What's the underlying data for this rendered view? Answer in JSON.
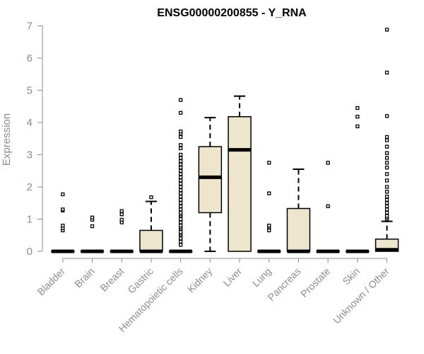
{
  "chart_data": {
    "type": "box",
    "title": "ENSG00000200855 - Y_RNA",
    "xlabel": "",
    "ylabel": "Expression",
    "ylim": [
      0,
      7
    ],
    "yticks": [
      0,
      1,
      2,
      3,
      4,
      5,
      6,
      7
    ],
    "grid": false,
    "colors": {
      "box_fill": "#ede6cc",
      "stroke": "#000000",
      "axis": "#8c8c8c"
    },
    "categories": [
      "Bladder",
      "Brain",
      "Breast",
      "Gastric",
      "Hematopoietic cells",
      "Kidney",
      "Liver",
      "Lung",
      "Pancreas",
      "Prostate",
      "Skin",
      "Unknown / Other"
    ],
    "boxes": [
      {
        "category": "Bladder",
        "whisker_low": 0,
        "q1": 0,
        "median": 0,
        "q3": 0,
        "whisker_high": 0,
        "outliers": [
          0.65,
          0.72,
          0.8,
          1.27,
          1.3,
          1.77
        ]
      },
      {
        "category": "Brain",
        "whisker_low": 0,
        "q1": 0,
        "median": 0,
        "q3": 0,
        "whisker_high": 0,
        "outliers": [
          0.78,
          0.98,
          1.05
        ]
      },
      {
        "category": "Breast",
        "whisker_low": 0,
        "q1": 0,
        "median": 0,
        "q3": 0,
        "whisker_high": 0,
        "outliers": [
          0.9,
          0.98,
          1.15,
          1.25
        ]
      },
      {
        "category": "Gastric",
        "whisker_low": 0,
        "q1": 0,
        "median": 0,
        "q3": 0.65,
        "whisker_high": 1.55,
        "outliers": [
          1.68
        ]
      },
      {
        "category": "Hematopoietic cells",
        "whisker_low": 0,
        "q1": 0,
        "median": 0,
        "q3": 0,
        "whisker_high": 0,
        "outliers": [
          0.2,
          0.3,
          0.4,
          0.5,
          0.55,
          0.6,
          0.7,
          0.75,
          0.8,
          0.9,
          1.0,
          1.1,
          1.15,
          1.2,
          1.3,
          1.4,
          1.5,
          1.6,
          1.7,
          1.8,
          1.9,
          2.0,
          2.1,
          2.2,
          2.3,
          2.4,
          2.5,
          2.6,
          2.7,
          2.8,
          2.9,
          3.0,
          3.2,
          3.3,
          3.55,
          3.65,
          3.72,
          4.3,
          4.7
        ]
      },
      {
        "category": "Kidney",
        "whisker_low": 0,
        "q1": 1.2,
        "median": 2.3,
        "q3": 3.25,
        "whisker_high": 4.15,
        "outliers": []
      },
      {
        "category": "Liver",
        "whisker_low": 0,
        "q1": 0,
        "median": 3.15,
        "q3": 4.18,
        "whisker_high": 4.82,
        "outliers": []
      },
      {
        "category": "Lung",
        "whisker_low": 0,
        "q1": 0,
        "median": 0,
        "q3": 0,
        "whisker_high": 0,
        "outliers": [
          0.65,
          0.75,
          0.8,
          1.8,
          2.75
        ]
      },
      {
        "category": "Pancreas",
        "whisker_low": 0,
        "q1": 0,
        "median": 0,
        "q3": 1.33,
        "whisker_high": 2.55,
        "outliers": []
      },
      {
        "category": "Prostate",
        "whisker_low": 0,
        "q1": 0,
        "median": 0,
        "q3": 0,
        "whisker_high": 0,
        "outliers": [
          1.4,
          2.75
        ]
      },
      {
        "category": "Skin",
        "whisker_low": 0,
        "q1": 0,
        "median": 0,
        "q3": 0,
        "whisker_high": 0,
        "outliers": [
          3.88,
          4.18,
          4.45
        ]
      },
      {
        "category": "Unknown / Other",
        "whisker_low": 0,
        "q1": 0,
        "median": 0.05,
        "q3": 0.38,
        "whisker_high": 0.93,
        "outliers": [
          1.0,
          1.05,
          1.1,
          1.2,
          1.3,
          1.4,
          1.5,
          1.6,
          1.7,
          1.85,
          2.0,
          2.2,
          2.4,
          2.6,
          2.75,
          2.9,
          3.05,
          3.25,
          3.45,
          3.55,
          4.2,
          5.55,
          6.88
        ]
      }
    ]
  }
}
